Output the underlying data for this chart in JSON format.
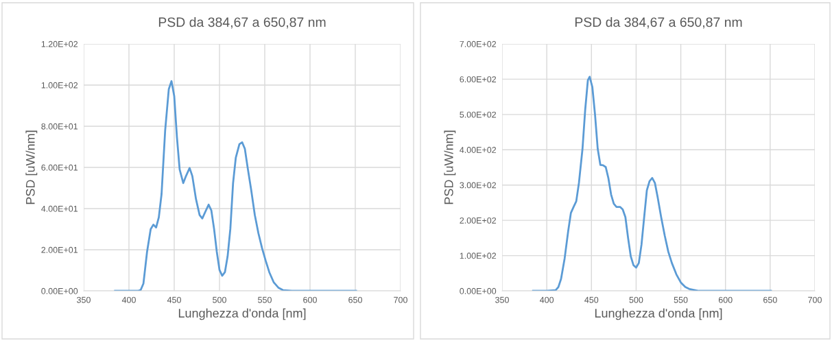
{
  "chart_data": [
    {
      "type": "line",
      "title": "PSD da 384,67 a 650,87 nm",
      "xlabel": "Lunghezza d'onda [nm]",
      "ylabel": "PSD [uW/nm]",
      "xlim": [
        350,
        700
      ],
      "xticks": [
        350,
        400,
        450,
        500,
        550,
        600,
        650,
        700
      ],
      "ylim": [
        0,
        120
      ],
      "yticks": [
        {
          "value": 0,
          "label": "0.00E+00"
        },
        {
          "value": 20,
          "label": "2.00E+01"
        },
        {
          "value": 40,
          "label": "4.00E+01"
        },
        {
          "value": 60,
          "label": "6.00E+01"
        },
        {
          "value": 80,
          "label": "8.00E+01"
        },
        {
          "value": 100,
          "label": "1.00E+02"
        },
        {
          "value": 120,
          "label": "1.20E+02"
        }
      ],
      "grid": true,
      "legend": false,
      "marker": "none",
      "line_style": "solid",
      "series": [
        {
          "color": "#5b9bd5",
          "x": [
            384.67,
            400,
            410,
            413,
            416,
            420,
            424,
            427,
            430,
            433,
            436,
            440,
            444,
            447,
            450,
            453,
            456,
            460,
            463,
            467,
            470,
            474,
            478,
            481,
            485,
            488,
            491,
            494,
            497,
            500,
            503,
            506,
            509,
            512,
            515,
            518,
            522,
            525,
            528,
            531,
            535,
            539,
            543,
            547,
            551,
            555,
            560,
            565,
            570,
            580,
            600,
            650.87
          ],
          "values": [
            0,
            0,
            0,
            0.5,
            3.6,
            19,
            30,
            32.2,
            30.8,
            35.8,
            47,
            78,
            98,
            101.9,
            94.7,
            74.7,
            59,
            52.4,
            55.8,
            59.7,
            55.8,
            44.7,
            36.9,
            35.2,
            39.1,
            41.9,
            39.1,
            30.2,
            19.1,
            10.2,
            7.4,
            9.1,
            16.9,
            30.2,
            52.4,
            64.7,
            71.3,
            72.2,
            69.1,
            60.2,
            49.1,
            36.9,
            28,
            20.8,
            14.7,
            9.1,
            4.1,
            1.6,
            0.4,
            0,
            0,
            0
          ]
        }
      ]
    },
    {
      "type": "line",
      "title": "PSD da 384,67 a 650,87 nm",
      "xlabel": "Lunghezza d'onda [nm]",
      "ylabel": "PSD [uW/nm]",
      "xlim": [
        350,
        700
      ],
      "xticks": [
        350,
        400,
        450,
        500,
        550,
        600,
        650,
        700
      ],
      "ylim": [
        0,
        700
      ],
      "yticks": [
        {
          "value": 0,
          "label": "0.00E+00"
        },
        {
          "value": 100,
          "label": "1.00E+02"
        },
        {
          "value": 200,
          "label": "2.00E+02"
        },
        {
          "value": 300,
          "label": "3.00E+02"
        },
        {
          "value": 400,
          "label": "4.00E+02"
        },
        {
          "value": 500,
          "label": "5.00E+02"
        },
        {
          "value": 600,
          "label": "6.00E+02"
        },
        {
          "value": 700,
          "label": "7.00E+02"
        }
      ],
      "grid": true,
      "legend": false,
      "marker": "none",
      "line_style": "solid",
      "series": [
        {
          "color": "#5b9bd5",
          "x": [
            384.67,
            400,
            410,
            413,
            416,
            420,
            424,
            427,
            430,
            433,
            436,
            440,
            443,
            446,
            448,
            451,
            454,
            457,
            460,
            463,
            466,
            469,
            472,
            475,
            478,
            482,
            485,
            488,
            491,
            494,
            497,
            500,
            503,
            506,
            509,
            512,
            515,
            518,
            521,
            524,
            528,
            532,
            536,
            540,
            545,
            550,
            555,
            560,
            570,
            600,
            650.87
          ],
          "values": [
            0,
            0,
            2,
            11,
            34,
            92,
            170,
            221,
            238,
            254,
            306,
            403,
            513,
            597,
            607,
            578,
            500,
            403,
            357,
            356,
            351,
            319,
            273,
            247,
            238,
            238,
            231,
            209,
            150,
            98,
            73,
            66,
            79,
            131,
            209,
            285,
            311,
            320,
            306,
            267,
            209,
            157,
            111,
            79,
            47,
            24,
            11,
            5,
            0,
            0,
            0
          ]
        }
      ]
    }
  ]
}
